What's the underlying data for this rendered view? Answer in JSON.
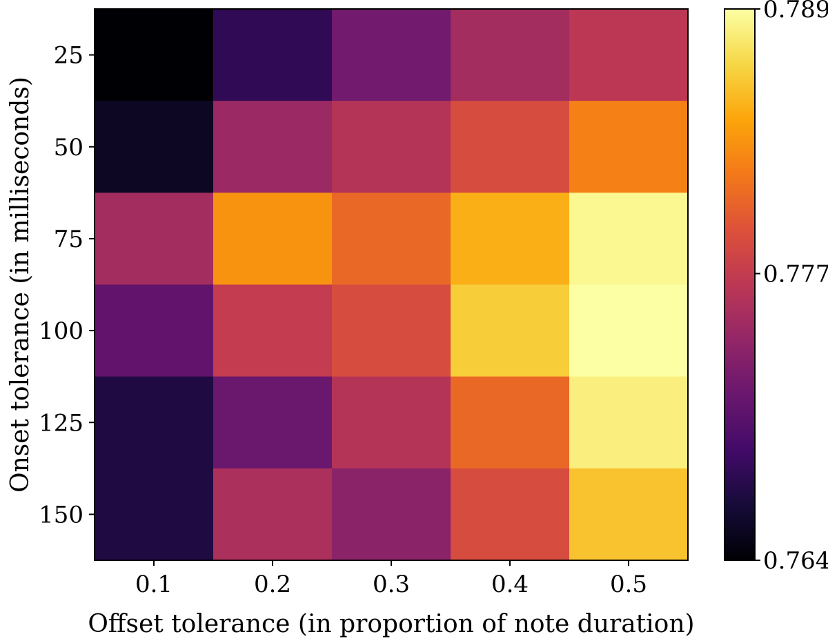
{
  "chart_data": {
    "type": "heatmap",
    "title": "",
    "xlabel": "Offset tolerance (in proportion of note duration)",
    "ylabel": "Onset tolerance (in milliseconds)",
    "x_categories": [
      "0.1",
      "0.2",
      "0.3",
      "0.4",
      "0.5"
    ],
    "y_categories": [
      "25",
      "50",
      "75",
      "100",
      "125",
      "150"
    ],
    "values": [
      [
        0.764,
        0.768,
        0.772,
        0.775,
        0.7765
      ],
      [
        0.7655,
        0.7745,
        0.776,
        0.7785,
        0.782
      ],
      [
        0.775,
        0.783,
        0.7805,
        0.7845,
        0.7885
      ],
      [
        0.771,
        0.777,
        0.7785,
        0.786,
        0.789
      ],
      [
        0.767,
        0.7715,
        0.776,
        0.7805,
        0.788
      ],
      [
        0.767,
        0.7755,
        0.7735,
        0.7785,
        0.7855
      ]
    ],
    "colormap": "inferno",
    "colorbar": {
      "min": 0.764,
      "max": 0.789,
      "tick_values": [
        0.764,
        0.777,
        0.789
      ],
      "tick_labels": [
        "0.764",
        "0.777",
        "0.789"
      ]
    }
  }
}
